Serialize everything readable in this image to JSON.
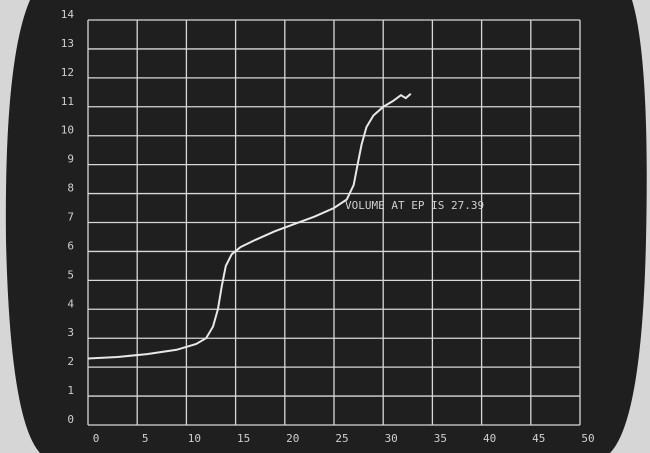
{
  "chart_data": {
    "type": "line",
    "annotation": "VOLUME AT EP IS 27.39",
    "series": [
      {
        "color": "#e8e8e8",
        "x": [
          0,
          3,
          6,
          9,
          11,
          12,
          12.7,
          13.2,
          13.6,
          14,
          14.6,
          15.5,
          17,
          19,
          21,
          23,
          25,
          26.3,
          27,
          27.4,
          27.8,
          28.3,
          29,
          30,
          31,
          31.8,
          32.3,
          32.8
        ],
        "values": [
          2.3,
          2.35,
          2.45,
          2.6,
          2.8,
          3.0,
          3.4,
          4.0,
          4.8,
          5.5,
          5.9,
          6.15,
          6.4,
          6.7,
          6.95,
          7.2,
          7.5,
          7.8,
          8.3,
          9.0,
          9.7,
          10.3,
          10.7,
          11.0,
          11.2,
          11.4,
          11.3,
          11.45
        ]
      }
    ],
    "xlim": [
      0,
      50
    ],
    "xticks": [
      0,
      5,
      10,
      15,
      20,
      25,
      30,
      35,
      40,
      45,
      50
    ],
    "ylim": [
      0,
      14
    ],
    "yticks": [
      0,
      1,
      2,
      3,
      4,
      5,
      6,
      7,
      8,
      9,
      10,
      11,
      12,
      13,
      14
    ],
    "grid": true
  }
}
